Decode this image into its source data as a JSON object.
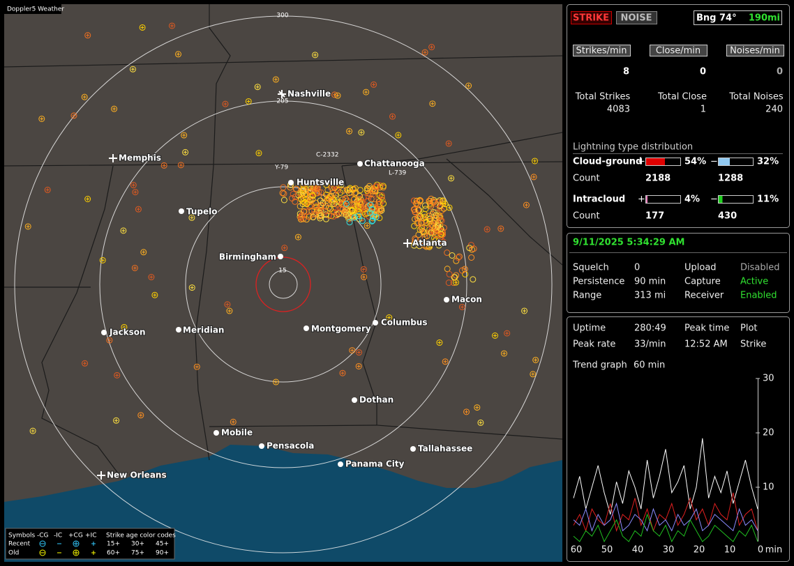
{
  "app_label": "Doppler5 Weather",
  "map": {
    "cities": [
      "Nashville",
      "Memphis",
      "Chattanooga",
      "Huntsville",
      "Tupelo",
      "Birmingham",
      "Atlanta",
      "Macon",
      "Jackson",
      "Meridian",
      "Montgomery",
      "Columbus",
      "Dothan",
      "Mobile",
      "Pensacola",
      "Tallahassee",
      "Panama City",
      "New Orleans"
    ],
    "range_labels": [
      "300",
      "205",
      "15"
    ],
    "strike_tags": [
      "C-2332",
      "Y-79",
      "L-739"
    ]
  },
  "legend": {
    "title": "Symbols",
    "types": [
      "-CG",
      "-IC",
      "+CG",
      "+IC"
    ],
    "age_title": "Strike age color codes",
    "rows": [
      "Recent",
      "Old"
    ],
    "ages": [
      "15+",
      "30+",
      "45+",
      "60+",
      "75+",
      "90+"
    ]
  },
  "status": {
    "buttons": [
      "STRIKE",
      "NOISE"
    ],
    "bearing": "Bng 74°",
    "distance": "190mi"
  },
  "rates": [
    {
      "label": "Strikes/min",
      "value": 8
    },
    {
      "label": "Close/min",
      "value": 0
    },
    {
      "label": "Noises/min",
      "value": 0
    }
  ],
  "totals": [
    {
      "label": "Total Strikes",
      "value": 4083
    },
    {
      "label": "Total Close",
      "value": 1
    },
    {
      "label": "Total Noises",
      "value": 240
    }
  ],
  "distribution": {
    "title": "Lightning type distribution",
    "signs": [
      "+",
      "−"
    ],
    "count_label": "Count",
    "rows": [
      {
        "label": "Cloud-ground",
        "positive": {
          "value": 54,
          "label": "54%"
        },
        "negative": {
          "value": 32,
          "label": "32%"
        },
        "positive_count": 2188,
        "negative_count": 1288
      },
      {
        "label": "Intracloud",
        "positive": {
          "value": 4,
          "label": "4%"
        },
        "negative": {
          "value": 11,
          "label": "11%"
        },
        "positive_count": 177,
        "negative_count": 430
      }
    ]
  },
  "datetime": "9/11/2025 5:34:29 AM",
  "settings": [
    [
      "Squelch",
      0,
      "Upload",
      "Disabled"
    ],
    [
      "Persistence",
      "90 min",
      "Capture",
      "Active"
    ],
    [
      "Range",
      "313 mi",
      "Receiver",
      "Enabled"
    ]
  ],
  "stats": [
    [
      "Uptime",
      "280:49",
      "Peak time",
      "Plot"
    ],
    [
      "Peak rate",
      "33/min",
      "12:52 AM",
      "Strike"
    ]
  ],
  "trend": {
    "label": "Trend graph",
    "window": "60 min",
    "x_unit": "min",
    "xlim": [
      60,
      0
    ],
    "xticks": [
      60,
      50,
      40,
      30,
      20,
      10,
      0
    ],
    "ylim": [
      0,
      30
    ],
    "yticks": [
      10,
      20,
      30
    ],
    "x": [
      60,
      58,
      56,
      54,
      52,
      50,
      48,
      46,
      44,
      42,
      40,
      38,
      36,
      34,
      32,
      30,
      28,
      26,
      24,
      22,
      20,
      18,
      16,
      14,
      12,
      10,
      8,
      6,
      4,
      2,
      0
    ],
    "series": [
      {
        "color": "#ffffff",
        "values": [
          8,
          12,
          6,
          10,
          14,
          9,
          5,
          11,
          7,
          13,
          10,
          6,
          15,
          8,
          12,
          17,
          9,
          11,
          14,
          6,
          10,
          19,
          8,
          12,
          9,
          13,
          7,
          11,
          15,
          10,
          6
        ]
      },
      {
        "color": "#e02020",
        "values": [
          3,
          5,
          2,
          6,
          4,
          3,
          7,
          2,
          5,
          4,
          8,
          3,
          6,
          2,
          5,
          4,
          7,
          3,
          5,
          8,
          4,
          6,
          3,
          7,
          5,
          4,
          9,
          3,
          5,
          6,
          2
        ]
      },
      {
        "color": "#8c8cff",
        "values": [
          4,
          3,
          6,
          2,
          5,
          3,
          4,
          7,
          2,
          3,
          5,
          4,
          2,
          6,
          3,
          4,
          2,
          5,
          3,
          4,
          6,
          2,
          3,
          5,
          4,
          3,
          2,
          6,
          3,
          4,
          2
        ]
      },
      {
        "color": "#20c020",
        "values": [
          1,
          0,
          2,
          1,
          3,
          0,
          2,
          4,
          1,
          0,
          2,
          1,
          5,
          2,
          1,
          3,
          0,
          2,
          1,
          4,
          2,
          0,
          1,
          3,
          2,
          1,
          0,
          2,
          1,
          3,
          0
        ]
      }
    ]
  }
}
